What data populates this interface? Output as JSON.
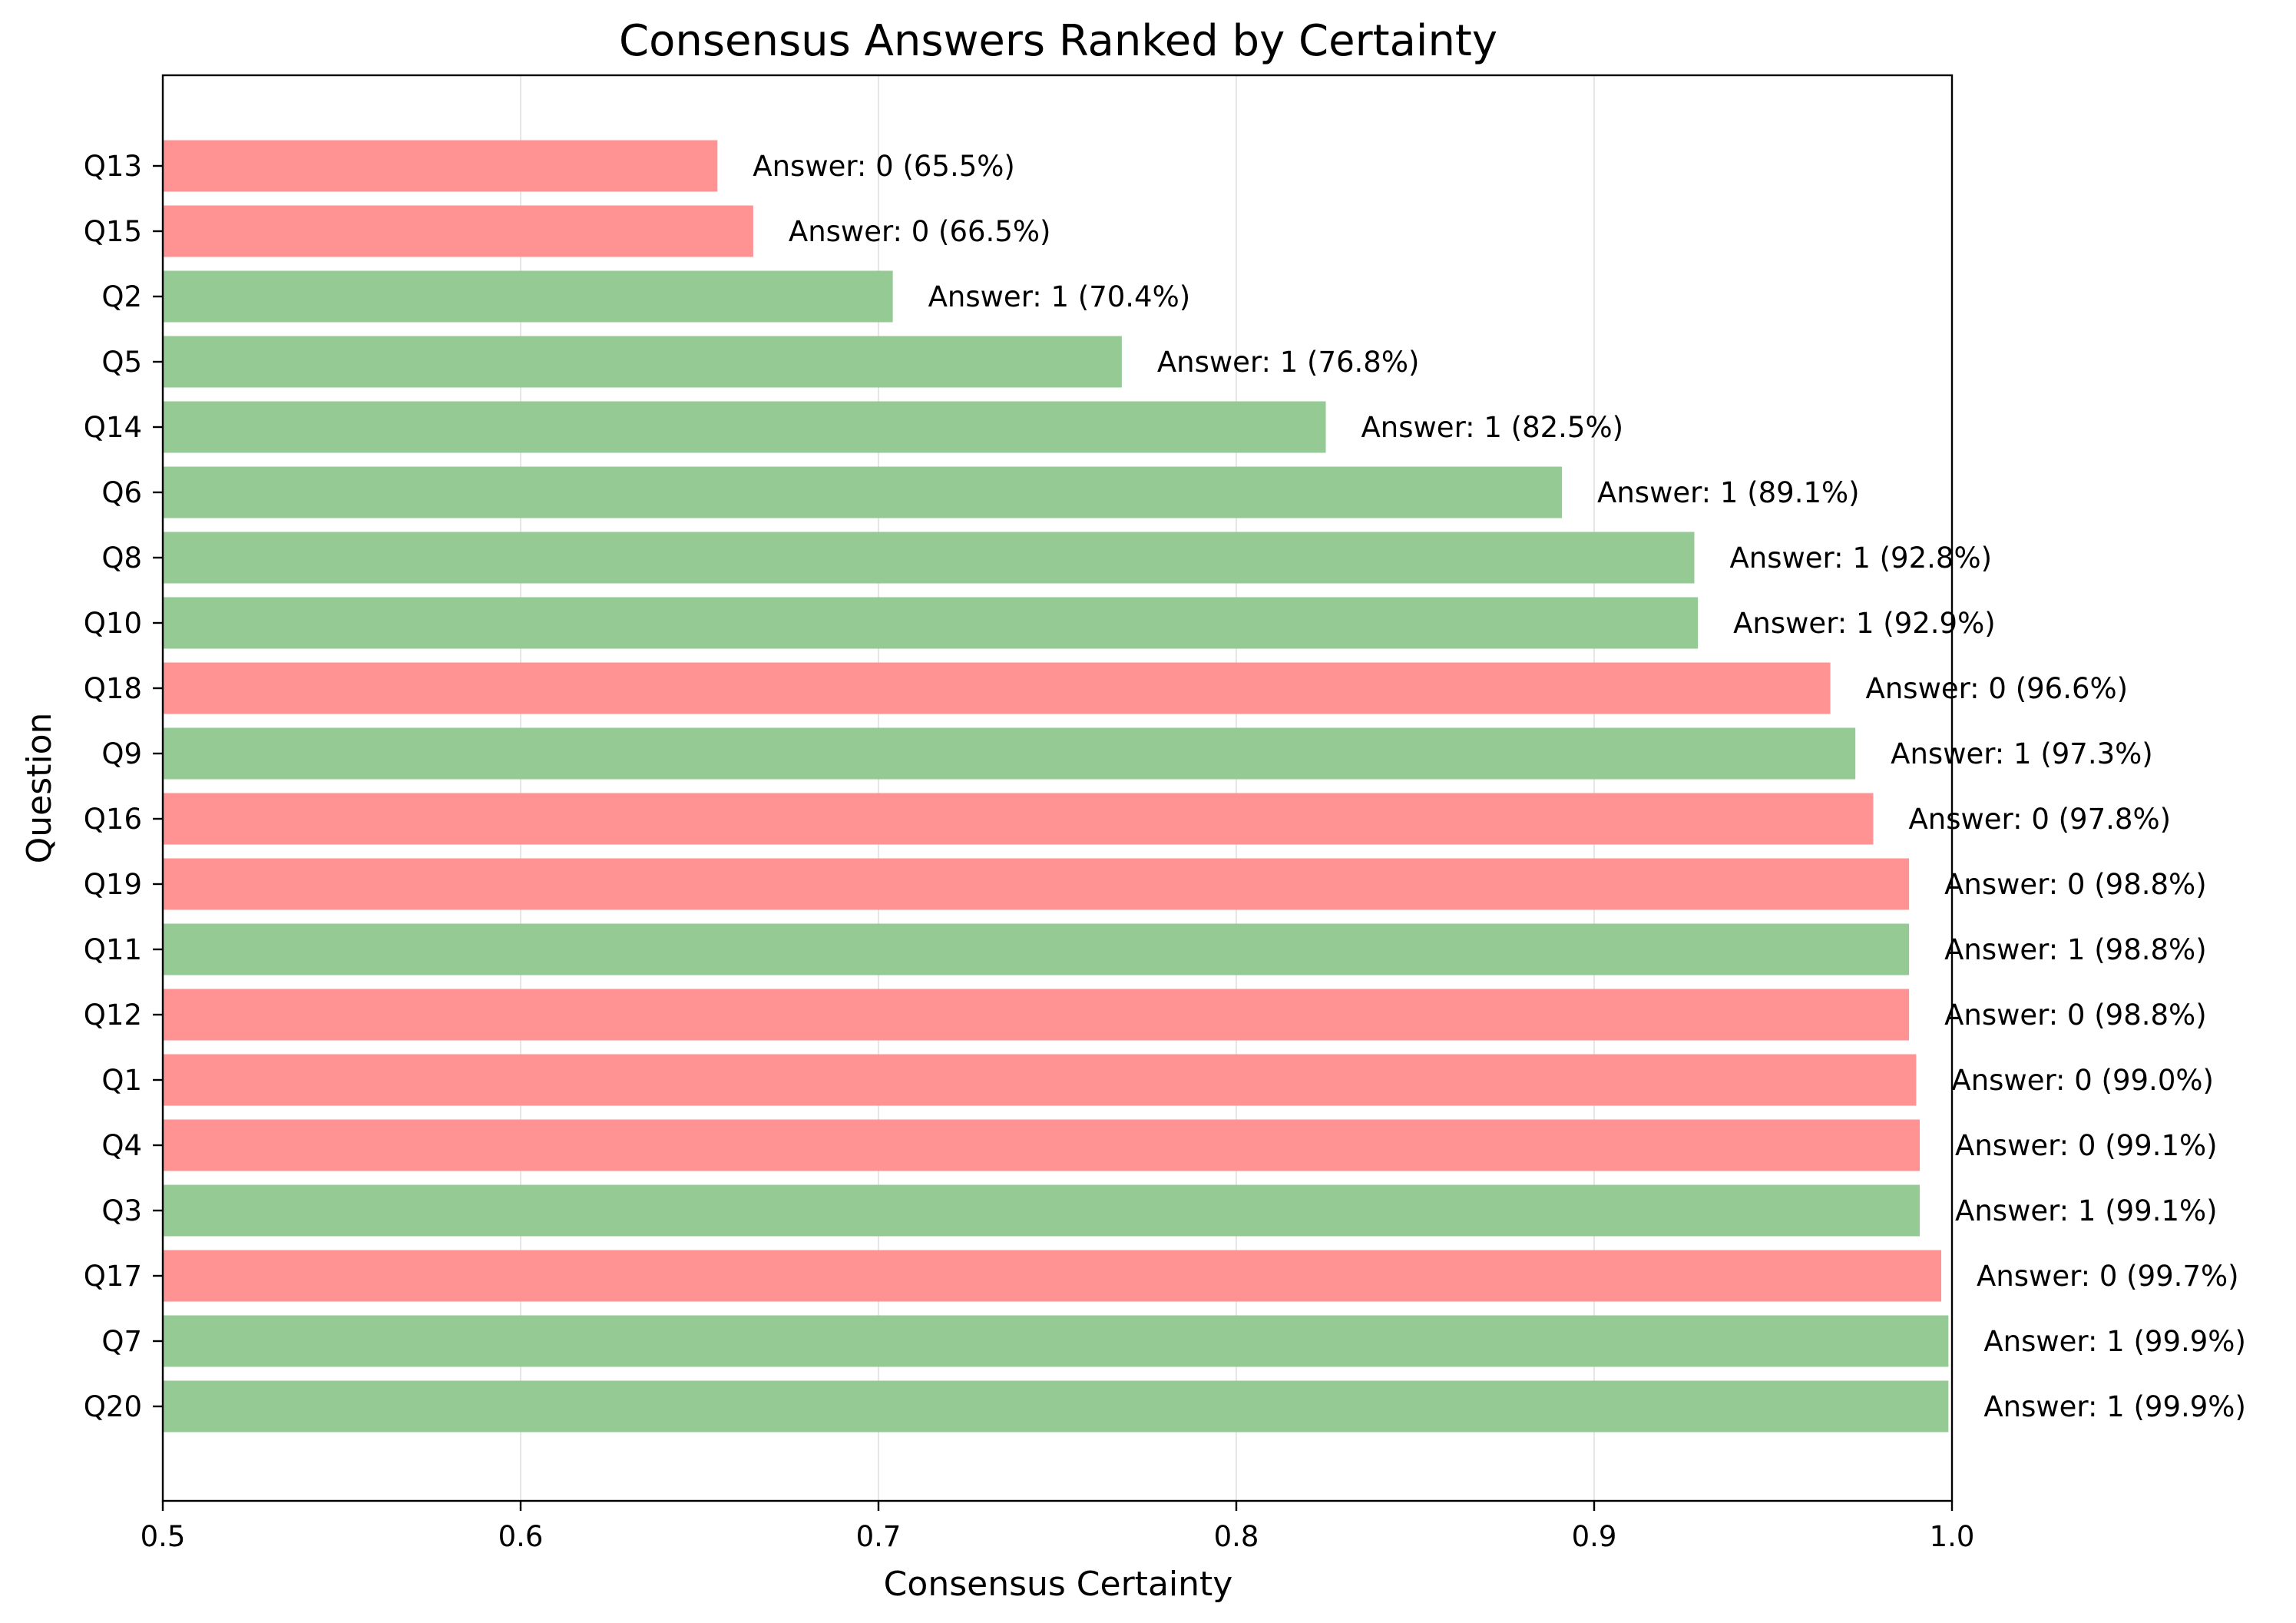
{
  "chart_data": {
    "type": "bar",
    "orientation": "horizontal",
    "title": "Consensus Answers Ranked by Certainty",
    "xlabel": "Consensus Certainty",
    "ylabel": "Question",
    "xlim": [
      0.5,
      1.0
    ],
    "x_ticks": [
      "0.5",
      "0.6",
      "0.7",
      "0.8",
      "0.9",
      "1.0"
    ],
    "x_tick_values": [
      0.5,
      0.6,
      0.7,
      0.8,
      0.9,
      1.0
    ],
    "grid": "x-major",
    "colors": {
      "answer_0": "#ff9393",
      "answer_1": "#96ca94"
    },
    "categories": [
      "Q13",
      "Q15",
      "Q2",
      "Q5",
      "Q14",
      "Q6",
      "Q8",
      "Q10",
      "Q18",
      "Q9",
      "Q16",
      "Q19",
      "Q11",
      "Q12",
      "Q1",
      "Q4",
      "Q3",
      "Q17",
      "Q7",
      "Q20"
    ],
    "values": [
      0.655,
      0.665,
      0.704,
      0.768,
      0.825,
      0.891,
      0.928,
      0.929,
      0.966,
      0.973,
      0.978,
      0.988,
      0.988,
      0.988,
      0.99,
      0.991,
      0.991,
      0.997,
      0.999,
      0.999
    ],
    "answers": [
      0,
      0,
      1,
      1,
      1,
      1,
      1,
      1,
      0,
      1,
      0,
      0,
      1,
      0,
      0,
      0,
      1,
      0,
      1,
      1
    ],
    "labels": [
      "Answer: 0 (65.5%)",
      "Answer: 0 (66.5%)",
      "Answer: 1 (70.4%)",
      "Answer: 1 (76.8%)",
      "Answer: 1 (82.5%)",
      "Answer: 1 (89.1%)",
      "Answer: 1 (92.8%)",
      "Answer: 1 (92.9%)",
      "Answer: 0 (96.6%)",
      "Answer: 1 (97.3%)",
      "Answer: 0 (97.8%)",
      "Answer: 0 (98.8%)",
      "Answer: 1 (98.8%)",
      "Answer: 0 (98.8%)",
      "Answer: 0 (99.0%)",
      "Answer: 0 (99.1%)",
      "Answer: 1 (99.1%)",
      "Answer: 0 (99.7%)",
      "Answer: 1 (99.9%)",
      "Answer: 1 (99.9%)"
    ]
  }
}
